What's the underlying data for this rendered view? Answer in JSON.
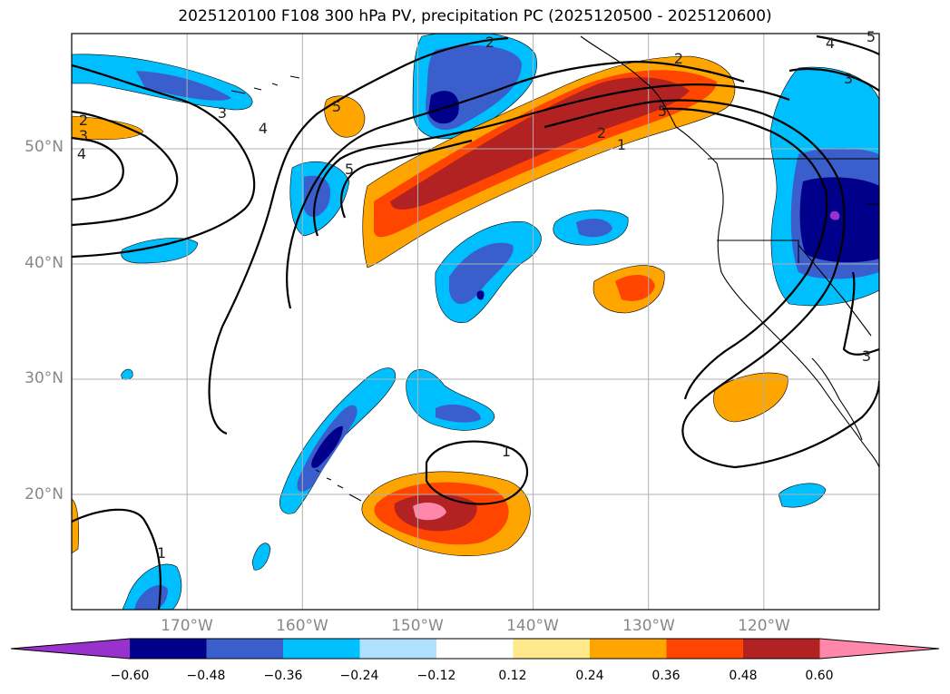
{
  "title": "2025120100 F108 300 hPa PV, precipitation PC (2025120500 - 2025120600)",
  "map": {
    "lon_range": [
      -180,
      -110
    ],
    "lat_range": [
      10,
      60
    ],
    "lat_labels": [
      "20°N",
      "30°N",
      "40°N",
      "50°N"
    ],
    "lon_labels": [
      "170°W",
      "160°W",
      "150°W",
      "140°W",
      "130°W",
      "120°W"
    ],
    "contour_labels": [
      "2",
      "4",
      "3",
      "5",
      "5",
      "2",
      "3",
      "4",
      "2",
      "1",
      "1",
      "1",
      "3",
      "3",
      "2",
      "4",
      "5",
      "5"
    ]
  },
  "colorbar": {
    "ticks": [
      "−0.60",
      "−0.48",
      "−0.36",
      "−0.24",
      "−0.12",
      "0.12",
      "0.24",
      "0.36",
      "0.48",
      "0.60"
    ],
    "colors": [
      "#9932cc",
      "#00008b",
      "#3a5fcd",
      "#00bfff",
      "#b0e0ff",
      "#ffffff",
      "#ffe98a",
      "#ffa500",
      "#ff4500",
      "#b22222",
      "#ff88aa"
    ]
  },
  "legend": {
    "pos": "#ffa500",
    "pos2": "#ff4500",
    "pos3": "#b22222",
    "pos4": "#ff88aa",
    "neg1": "#00bfff",
    "neg2": "#3a5fcd",
    "neg3": "#00008b",
    "neg4": "#9932cc"
  }
}
